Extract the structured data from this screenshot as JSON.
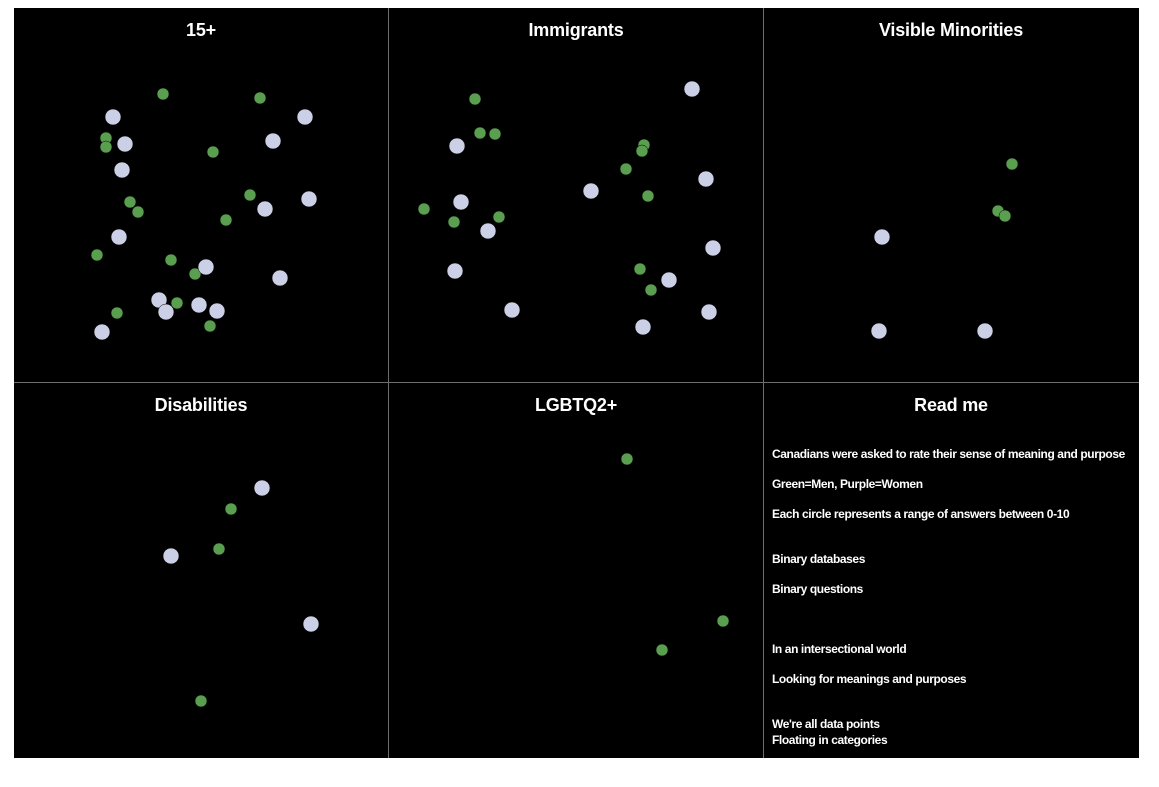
{
  "colors": {
    "men": "#5a9f4f",
    "women": "#ccd0e6",
    "background": "#000000",
    "divider": "#6e6e6e",
    "text": "#ffffff"
  },
  "chart_data": [
    {
      "type": "scatter",
      "title": "15+",
      "series": [
        {
          "color": "men",
          "points": [
            [
              149,
              86
            ],
            [
              246,
              90
            ],
            [
              92,
              130
            ],
            [
              92,
              139
            ],
            [
              199,
              144
            ],
            [
              116,
              194
            ],
            [
              124,
              204
            ],
            [
              236,
              187
            ],
            [
              212,
              212
            ],
            [
              83,
              247
            ],
            [
              157,
              252
            ],
            [
              181,
              266
            ],
            [
              163,
              295
            ],
            [
              103,
              305
            ],
            [
              196,
              318
            ]
          ]
        },
        {
          "color": "women",
          "points": [
            [
              99,
              109
            ],
            [
              111,
              136
            ],
            [
              291,
              109
            ],
            [
              259,
              133
            ],
            [
              108,
              162
            ],
            [
              251,
              201
            ],
            [
              295,
              191
            ],
            [
              105,
              229
            ],
            [
              192,
              259
            ],
            [
              266,
              270
            ],
            [
              145,
              292
            ],
            [
              152,
              304
            ],
            [
              185,
              297
            ],
            [
              203,
              303
            ],
            [
              88,
              324
            ]
          ]
        }
      ]
    },
    {
      "type": "scatter",
      "title": "Immigrants",
      "series": [
        {
          "color": "men",
          "points": [
            [
              86,
              91
            ],
            [
              91,
              125
            ],
            [
              106,
              126
            ],
            [
              255,
              137
            ],
            [
              253,
              143
            ],
            [
              237,
              161
            ],
            [
              259,
              188
            ],
            [
              35,
              201
            ],
            [
              65,
              214
            ],
            [
              110,
              209
            ],
            [
              251,
              261
            ],
            [
              262,
              282
            ]
          ]
        },
        {
          "color": "women",
          "points": [
            [
              303,
              81
            ],
            [
              68,
              138
            ],
            [
              317,
              171
            ],
            [
              202,
              183
            ],
            [
              72,
              194
            ],
            [
              99,
              223
            ],
            [
              324,
              240
            ],
            [
              66,
              263
            ],
            [
              280,
              272
            ],
            [
              123,
              302
            ],
            [
              254,
              319
            ],
            [
              320,
              304
            ]
          ]
        }
      ]
    },
    {
      "type": "scatter",
      "title": "Visible Minorities",
      "series": [
        {
          "color": "men",
          "points": [
            [
              248,
              156
            ],
            [
              234,
              203
            ],
            [
              241,
              208
            ]
          ]
        },
        {
          "color": "women",
          "points": [
            [
              118,
              229
            ],
            [
              115,
              323
            ],
            [
              221,
              323
            ]
          ]
        }
      ]
    },
    {
      "type": "scatter",
      "title": "Disabilities",
      "series": [
        {
          "color": "men",
          "points": [
            [
              217,
              126
            ],
            [
              205,
              166
            ],
            [
              187,
              318
            ]
          ]
        },
        {
          "color": "women",
          "points": [
            [
              248,
              105
            ],
            [
              157,
              173
            ],
            [
              297,
              241
            ]
          ]
        }
      ]
    },
    {
      "type": "scatter",
      "title": "LGBTQ2+",
      "series": [
        {
          "color": "men",
          "points": [
            [
              238,
              76
            ],
            [
              334,
              238
            ],
            [
              273,
              267
            ]
          ]
        },
        {
          "color": "women",
          "points": []
        }
      ]
    }
  ],
  "readme": {
    "title": "Read me",
    "lines": [
      "Canadians were asked to rate their sense of meaning and purpose",
      "Green=Men, Purple=Women",
      "Each circle represents a range of answers between 0-10",
      "Binary databases",
      "Binary questions",
      "In an intersectional world",
      "Looking for meanings and purposes",
      "We're all data points",
      "Floating in categories"
    ]
  }
}
